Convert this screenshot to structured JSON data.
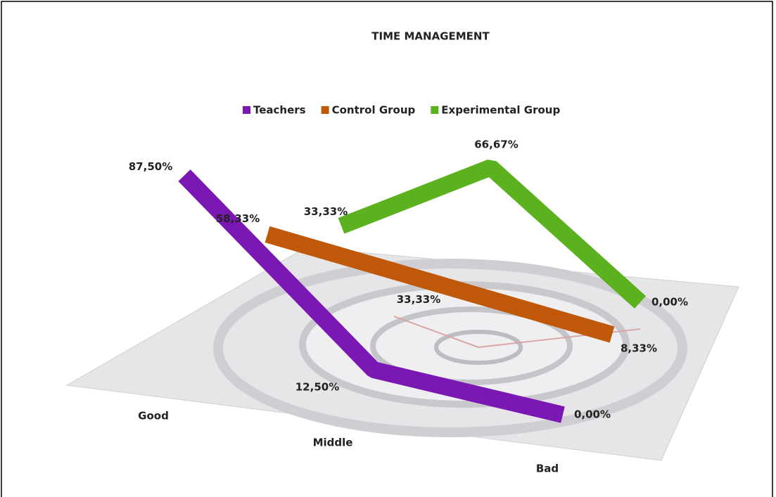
{
  "chart_data": {
    "type": "line3d",
    "title": "TIME MANAGEMENT",
    "categories": [
      "Good",
      "Middle",
      "Bad"
    ],
    "series": [
      {
        "name": "Teachers",
        "color": "#7b17b3",
        "values": [
          87.5,
          12.5,
          0
        ],
        "value_labels": [
          "87,50%",
          "12,50%",
          "0,00%"
        ]
      },
      {
        "name": "Control Group",
        "color": "#c0580a",
        "values": [
          58.33,
          33.33,
          8.33
        ],
        "value_labels": [
          "58,33%",
          "33,33%",
          "8,33%"
        ]
      },
      {
        "name": "Experimental Group",
        "color": "#5cb21e",
        "values": [
          33.33,
          66.67,
          0
        ],
        "value_labels": [
          "33,33%",
          "66,67%",
          "0,00%"
        ]
      }
    ],
    "legend": "top"
  }
}
